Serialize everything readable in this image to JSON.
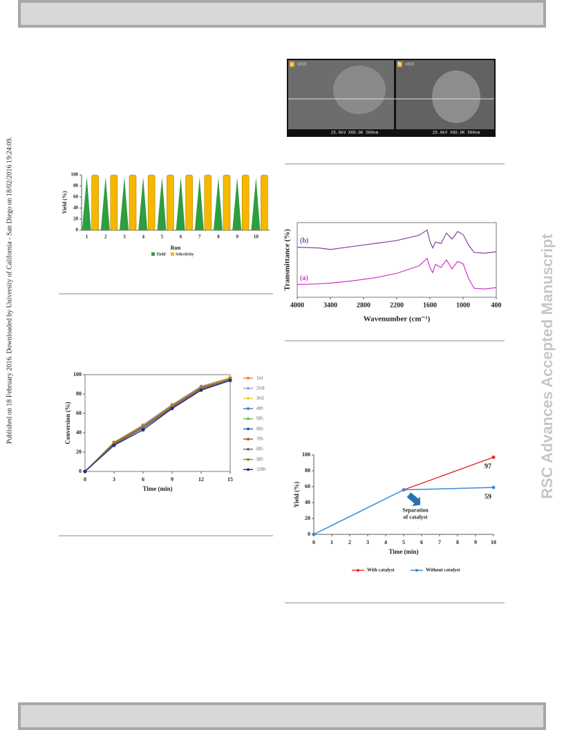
{
  "side_text": "Published on 18 February 2016. Downloaded by University of California - San Diego on 18/02/2016 19:24:09.",
  "watermark": "RSC Advances Accepted Manuscript",
  "figure_sem": {
    "panels": [
      "a",
      "b"
    ],
    "instrument_label": "25.0kV X60.0K 500nm",
    "code": "v310"
  },
  "chart_data": [
    {
      "type": "bar",
      "xlabel": "Run",
      "ylabel": "Yield (%)",
      "categories": [
        "1",
        "2",
        "3",
        "4",
        "5",
        "6",
        "7",
        "8",
        "9",
        "10"
      ],
      "series": [
        {
          "name": "Yield",
          "color": "#2e9e3e",
          "values": [
            97,
            97,
            96,
            96,
            96,
            96,
            96,
            95,
            95,
            95
          ]
        },
        {
          "name": "Selectivity",
          "color": "#f5b800",
          "values": [
            100,
            100,
            100,
            100,
            100,
            100,
            100,
            100,
            100,
            100
          ]
        }
      ],
      "ylim": [
        0,
        100
      ],
      "yticks": [
        0,
        20,
        40,
        60,
        80,
        100
      ],
      "legend": "bottom"
    },
    {
      "type": "line",
      "xlabel": "Time (min)",
      "ylabel": "Conversion (%)",
      "x": [
        0,
        3,
        6,
        9,
        12,
        15
      ],
      "xlim": [
        0,
        15
      ],
      "xticks": [
        0,
        3,
        6,
        9,
        12,
        15
      ],
      "ylim": [
        0,
        100
      ],
      "yticks": [
        0,
        20,
        40,
        60,
        80,
        100
      ],
      "legend": "right",
      "markers": true,
      "series": [
        {
          "name": "1st",
          "color": "#f08040",
          "values": [
            0,
            29,
            47,
            68,
            87,
            97
          ]
        },
        {
          "name": "2nd",
          "color": "#a0a0d0",
          "values": [
            0,
            30,
            48,
            69,
            88,
            97
          ]
        },
        {
          "name": "3rd",
          "color": "#f0d030",
          "values": [
            0,
            30,
            47,
            68,
            87,
            97
          ]
        },
        {
          "name": "4th",
          "color": "#4080d0",
          "values": [
            0,
            28,
            47,
            67,
            86,
            96
          ]
        },
        {
          "name": "5th",
          "color": "#70c050",
          "values": [
            0,
            29,
            46,
            67,
            86,
            96
          ]
        },
        {
          "name": "6th",
          "color": "#3060a0",
          "values": [
            0,
            28,
            45,
            66,
            85,
            95
          ]
        },
        {
          "name": "7th",
          "color": "#c05020",
          "values": [
            0,
            29,
            46,
            67,
            86,
            96
          ]
        },
        {
          "name": "8th",
          "color": "#707070",
          "values": [
            0,
            28,
            45,
            66,
            85,
            95
          ]
        },
        {
          "name": "9th",
          "color": "#a08020",
          "values": [
            0,
            30,
            47,
            68,
            87,
            96
          ]
        },
        {
          "name": "10th",
          "color": "#203080",
          "values": [
            0,
            27,
            43,
            65,
            84,
            94
          ]
        }
      ]
    },
    {
      "type": "line",
      "xlabel": "Wavenumber (cm⁻¹)",
      "ylabel": "Transmittance (%)",
      "x": [
        4000,
        3600,
        3400,
        3000,
        2600,
        2200,
        1800,
        1650,
        1600,
        1550,
        1500,
        1400,
        1300,
        1200,
        1100,
        1000,
        900,
        800,
        600,
        400
      ],
      "xlim": [
        4000,
        400
      ],
      "xticks": [
        4000,
        3400,
        2800,
        2200,
        1600,
        1000,
        400
      ],
      "ylim": [
        0,
        100
      ],
      "legend": "inline",
      "markers": false,
      "series": [
        {
          "name": "(b)",
          "color": "#8040a8",
          "values": [
            67,
            66,
            64,
            68,
            72,
            76,
            83,
            90,
            75,
            66,
            74,
            72,
            86,
            78,
            88,
            84,
            70,
            60,
            59,
            61
          ]
        },
        {
          "name": "(a)",
          "color": "#d030c8",
          "values": [
            17,
            18,
            19,
            22,
            26,
            32,
            42,
            52,
            40,
            33,
            44,
            40,
            50,
            38,
            48,
            45,
            25,
            12,
            11,
            13
          ]
        }
      ]
    },
    {
      "type": "line",
      "xlabel": "Time (min)",
      "ylabel": "Yield (%)",
      "x": [
        0,
        5,
        10
      ],
      "xlim": [
        0,
        10
      ],
      "xticks": [
        0,
        1,
        2,
        3,
        4,
        5,
        6,
        7,
        8,
        9,
        10
      ],
      "ylim": [
        0,
        100
      ],
      "yticks": [
        0,
        20,
        40,
        60,
        80,
        100
      ],
      "legend": "bottom",
      "markers": true,
      "annotation": [
        "Separation",
        "of catalyst"
      ],
      "series": [
        {
          "name": "With catalyst",
          "color": "#e8302a",
          "values": [
            null,
            56,
            97
          ],
          "data_labels": true
        },
        {
          "name": "Without catalyst",
          "color": "#3a8ad0",
          "values": [
            0,
            56,
            59
          ],
          "data_labels": true
        }
      ]
    }
  ]
}
